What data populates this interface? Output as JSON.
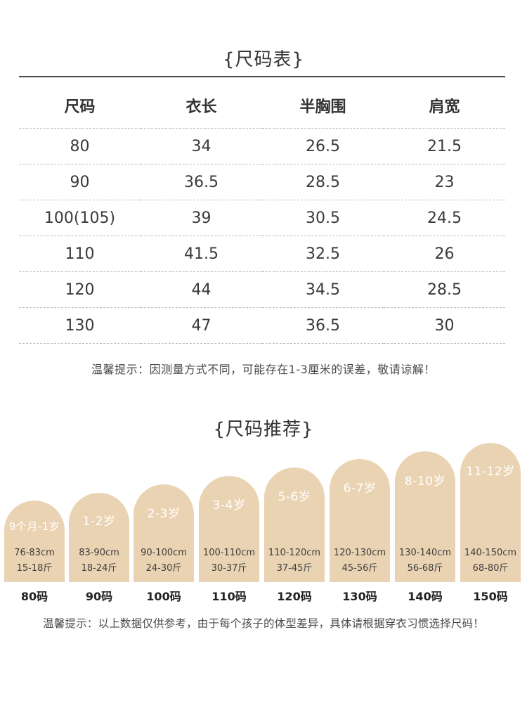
{
  "size_table": {
    "title": "{尺码表}",
    "headers": [
      "尺码",
      "衣长",
      "半胸围",
      "肩宽"
    ],
    "rows": [
      [
        "80",
        "34",
        "26.5",
        "21.5"
      ],
      [
        "90",
        "36.5",
        "28.5",
        "23"
      ],
      [
        "100(105)",
        "39",
        "30.5",
        "24.5"
      ],
      [
        "110",
        "41.5",
        "32.5",
        "26"
      ],
      [
        "120",
        "44",
        "34.5",
        "28.5"
      ],
      [
        "130",
        "47",
        "36.5",
        "30"
      ]
    ],
    "note": "温馨提示：因测量方式不同，可能存在1-3厘米的误差，敬请谅解！"
  },
  "recommendation": {
    "title": "{尺码推荐}",
    "cards": [
      {
        "age": "9个月-1岁",
        "height": "76-83cm",
        "weight": "15-18斤",
        "code": "80码"
      },
      {
        "age": "1-2岁",
        "height": "83-90cm",
        "weight": "18-24斤",
        "code": "90码"
      },
      {
        "age": "2-3岁",
        "height": "90-100cm",
        "weight": "24-30斤",
        "code": "100码"
      },
      {
        "age": "3-4岁",
        "height": "100-110cm",
        "weight": "30-37斤",
        "code": "110码"
      },
      {
        "age": "5-6岁",
        "height": "110-120cm",
        "weight": "37-45斤",
        "code": "120码"
      },
      {
        "age": "6-7岁",
        "height": "120-130cm",
        "weight": "45-56斤",
        "code": "130码"
      },
      {
        "age": "8-10岁",
        "height": "130-140cm",
        "weight": "56-68斤",
        "code": "140码"
      },
      {
        "age": "11-12岁",
        "height": "140-150cm",
        "weight": "68-80斤",
        "code": "150码"
      }
    ],
    "note": "温馨提示：以上数据仅供参考，由于每个孩子的体型差异，具体请根据穿衣习惯选择尺码！"
  },
  "colors": {
    "card_fill": "#ead3b2",
    "rule": "#4a4a4a",
    "divider": "#bdbdbd"
  }
}
